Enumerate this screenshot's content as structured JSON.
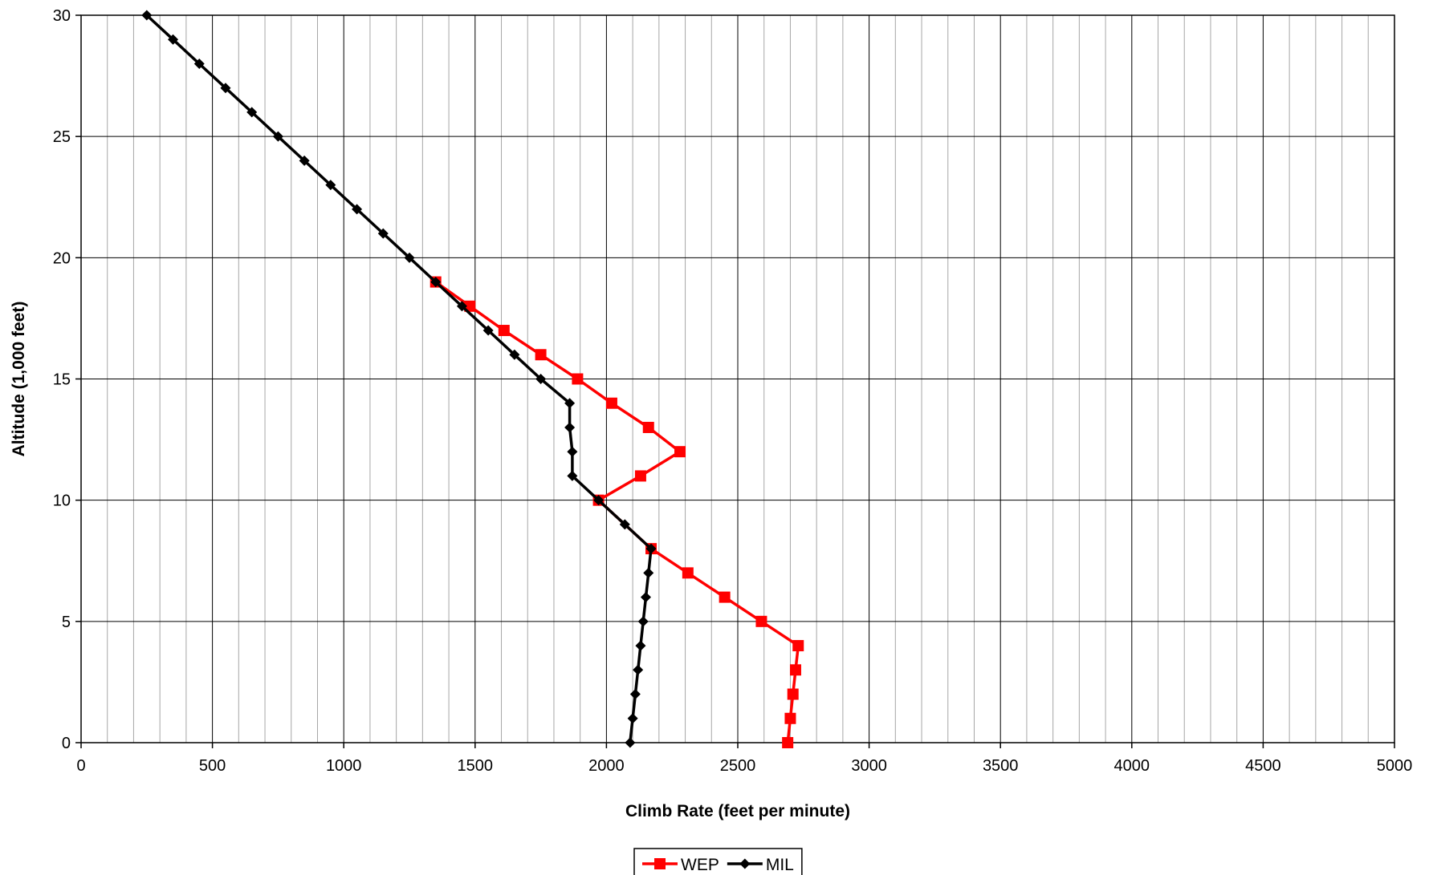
{
  "chart_data": {
    "type": "line",
    "title": "",
    "xlabel": "Climb Rate (feet per minute)",
    "ylabel": "Altitude (1,000 feet)",
    "xlim": [
      0,
      5000
    ],
    "ylim": [
      0,
      30
    ],
    "x_major_ticks": [
      0,
      500,
      1000,
      1500,
      2000,
      2500,
      3000,
      3500,
      4000,
      4500,
      5000
    ],
    "y_major_ticks": [
      0,
      5,
      10,
      15,
      20,
      25,
      30
    ],
    "x_minor_step": 100,
    "grid": true,
    "legend_position": "bottom-center",
    "series": [
      {
        "name": "WEP",
        "color": "#ff0000",
        "marker": "square",
        "points": [
          [
            2690,
            0
          ],
          [
            2700,
            1
          ],
          [
            2710,
            2
          ],
          [
            2720,
            3
          ],
          [
            2730,
            4
          ],
          [
            2590,
            5
          ],
          [
            2450,
            6
          ],
          [
            2310,
            7
          ],
          [
            2170,
            8
          ],
          [
            1970,
            10
          ],
          [
            2130,
            11
          ],
          [
            2280,
            12
          ],
          [
            2160,
            13
          ],
          [
            2020,
            14
          ],
          [
            1890,
            15
          ],
          [
            1750,
            16
          ],
          [
            1610,
            17
          ],
          [
            1480,
            18
          ],
          [
            1350,
            19
          ]
        ]
      },
      {
        "name": "MIL",
        "color": "#000000",
        "marker": "diamond",
        "points": [
          [
            2090,
            0
          ],
          [
            2100,
            1
          ],
          [
            2110,
            2
          ],
          [
            2120,
            3
          ],
          [
            2130,
            4
          ],
          [
            2140,
            5
          ],
          [
            2150,
            6
          ],
          [
            2160,
            7
          ],
          [
            2170,
            8
          ],
          [
            2070,
            9
          ],
          [
            1970,
            10
          ],
          [
            1870,
            11
          ],
          [
            1870,
            12
          ],
          [
            1860,
            13
          ],
          [
            1860,
            14
          ],
          [
            1750,
            15
          ],
          [
            1650,
            16
          ],
          [
            1550,
            17
          ],
          [
            1450,
            18
          ],
          [
            1350,
            19
          ],
          [
            1250,
            20
          ],
          [
            1150,
            21
          ],
          [
            1050,
            22
          ],
          [
            950,
            23
          ],
          [
            850,
            24
          ],
          [
            750,
            25
          ],
          [
            650,
            26
          ],
          [
            550,
            27
          ],
          [
            450,
            28
          ],
          [
            350,
            29
          ],
          [
            250,
            30
          ]
        ]
      }
    ]
  }
}
